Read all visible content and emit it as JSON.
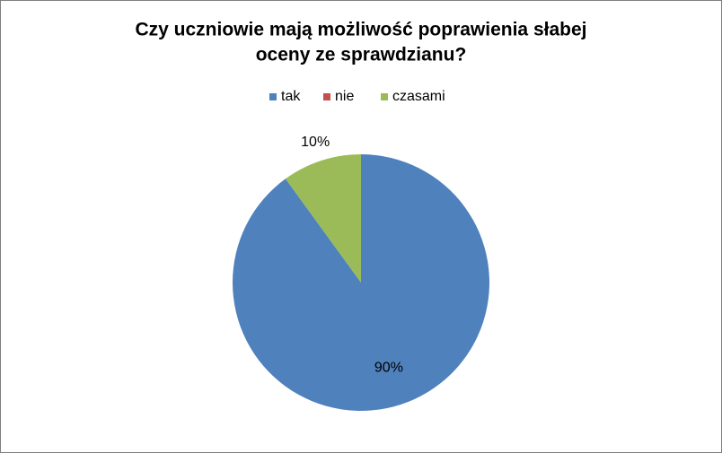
{
  "chart_data": {
    "type": "pie",
    "title": [
      "Czy uczniowie mają możliwość poprawienia słabej",
      "oceny ze sprawdzianu?"
    ],
    "categories": [
      "tak",
      "nie",
      "czasami"
    ],
    "values": [
      90,
      0,
      10
    ],
    "value_labels": [
      "90%",
      null,
      "10%"
    ],
    "colors": [
      "#4f81bd",
      "#c0504d",
      "#9bbb59"
    ],
    "legend": "top"
  }
}
